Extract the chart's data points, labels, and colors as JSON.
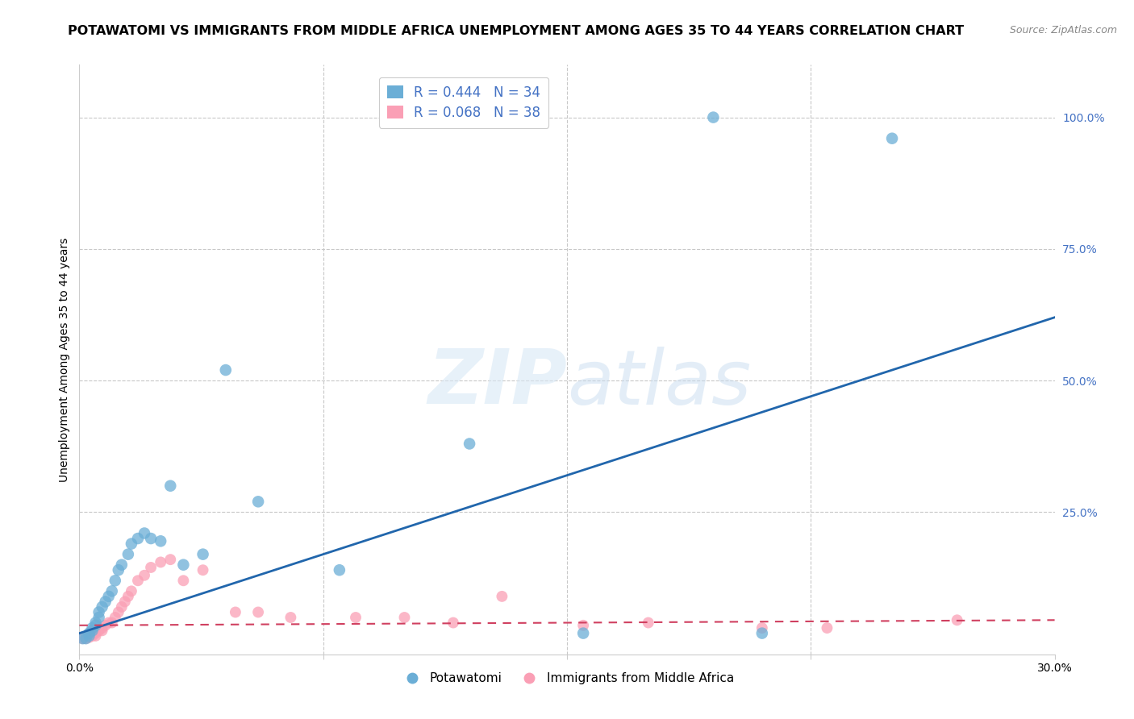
{
  "title": "POTAWATOMI VS IMMIGRANTS FROM MIDDLE AFRICA UNEMPLOYMENT AMONG AGES 35 TO 44 YEARS CORRELATION CHART",
  "source": "Source: ZipAtlas.com",
  "ylabel": "Unemployment Among Ages 35 to 44 years",
  "xlim": [
    0.0,
    0.3
  ],
  "ylim": [
    -0.02,
    1.1
  ],
  "xticks": [
    0.0,
    0.075,
    0.15,
    0.225,
    0.3
  ],
  "xtick_labels": [
    "0.0%",
    "",
    "",
    "",
    "30.0%"
  ],
  "yticks_right": [
    0.0,
    0.25,
    0.5,
    0.75,
    1.0
  ],
  "ytick_labels_right": [
    "",
    "25.0%",
    "50.0%",
    "75.0%",
    "100.0%"
  ],
  "legend_blue_r": "R = 0.444",
  "legend_blue_n": "N = 34",
  "legend_pink_r": "R = 0.068",
  "legend_pink_n": "N = 38",
  "legend_label_blue": "Potawatomi",
  "legend_label_pink": "Immigrants from Middle Africa",
  "blue_scatter_x": [
    0.001,
    0.002,
    0.003,
    0.003,
    0.004,
    0.004,
    0.005,
    0.005,
    0.006,
    0.006,
    0.007,
    0.008,
    0.009,
    0.01,
    0.011,
    0.012,
    0.013,
    0.015,
    0.016,
    0.018,
    0.02,
    0.022,
    0.025,
    0.028,
    0.032,
    0.038,
    0.045,
    0.055,
    0.08,
    0.12,
    0.155,
    0.195,
    0.21,
    0.25
  ],
  "blue_scatter_y": [
    0.01,
    0.01,
    0.015,
    0.02,
    0.025,
    0.03,
    0.035,
    0.04,
    0.05,
    0.06,
    0.07,
    0.08,
    0.09,
    0.1,
    0.12,
    0.14,
    0.15,
    0.17,
    0.19,
    0.2,
    0.21,
    0.2,
    0.195,
    0.3,
    0.15,
    0.17,
    0.52,
    0.27,
    0.14,
    0.38,
    0.02,
    1.0,
    0.02,
    0.96
  ],
  "pink_scatter_x": [
    0.001,
    0.002,
    0.003,
    0.004,
    0.004,
    0.005,
    0.005,
    0.006,
    0.007,
    0.007,
    0.008,
    0.009,
    0.01,
    0.011,
    0.012,
    0.013,
    0.014,
    0.015,
    0.016,
    0.018,
    0.02,
    0.022,
    0.025,
    0.028,
    0.032,
    0.038,
    0.048,
    0.055,
    0.065,
    0.085,
    0.1,
    0.115,
    0.13,
    0.155,
    0.175,
    0.21,
    0.23,
    0.27
  ],
  "pink_scatter_y": [
    0.01,
    0.01,
    0.012,
    0.015,
    0.02,
    0.015,
    0.02,
    0.025,
    0.025,
    0.03,
    0.035,
    0.04,
    0.04,
    0.05,
    0.06,
    0.07,
    0.08,
    0.09,
    0.1,
    0.12,
    0.13,
    0.145,
    0.155,
    0.16,
    0.12,
    0.14,
    0.06,
    0.06,
    0.05,
    0.05,
    0.05,
    0.04,
    0.09,
    0.035,
    0.04,
    0.03,
    0.03,
    0.045
  ],
  "blue_line_x": [
    0.0,
    0.3
  ],
  "blue_line_y": [
    0.02,
    0.62
  ],
  "pink_line_x": [
    0.0,
    0.3
  ],
  "pink_line_y": [
    0.035,
    0.045
  ],
  "blue_color": "#6baed6",
  "pink_color": "#fa9fb5",
  "blue_line_color": "#2166ac",
  "pink_line_color": "#d04060",
  "watermark_zip": "ZIP",
  "watermark_atlas": "atlas",
  "title_fontsize": 11.5,
  "source_fontsize": 9,
  "right_axis_color": "#4472c4",
  "grid_color": "#c8c8c8",
  "background_color": "#ffffff"
}
